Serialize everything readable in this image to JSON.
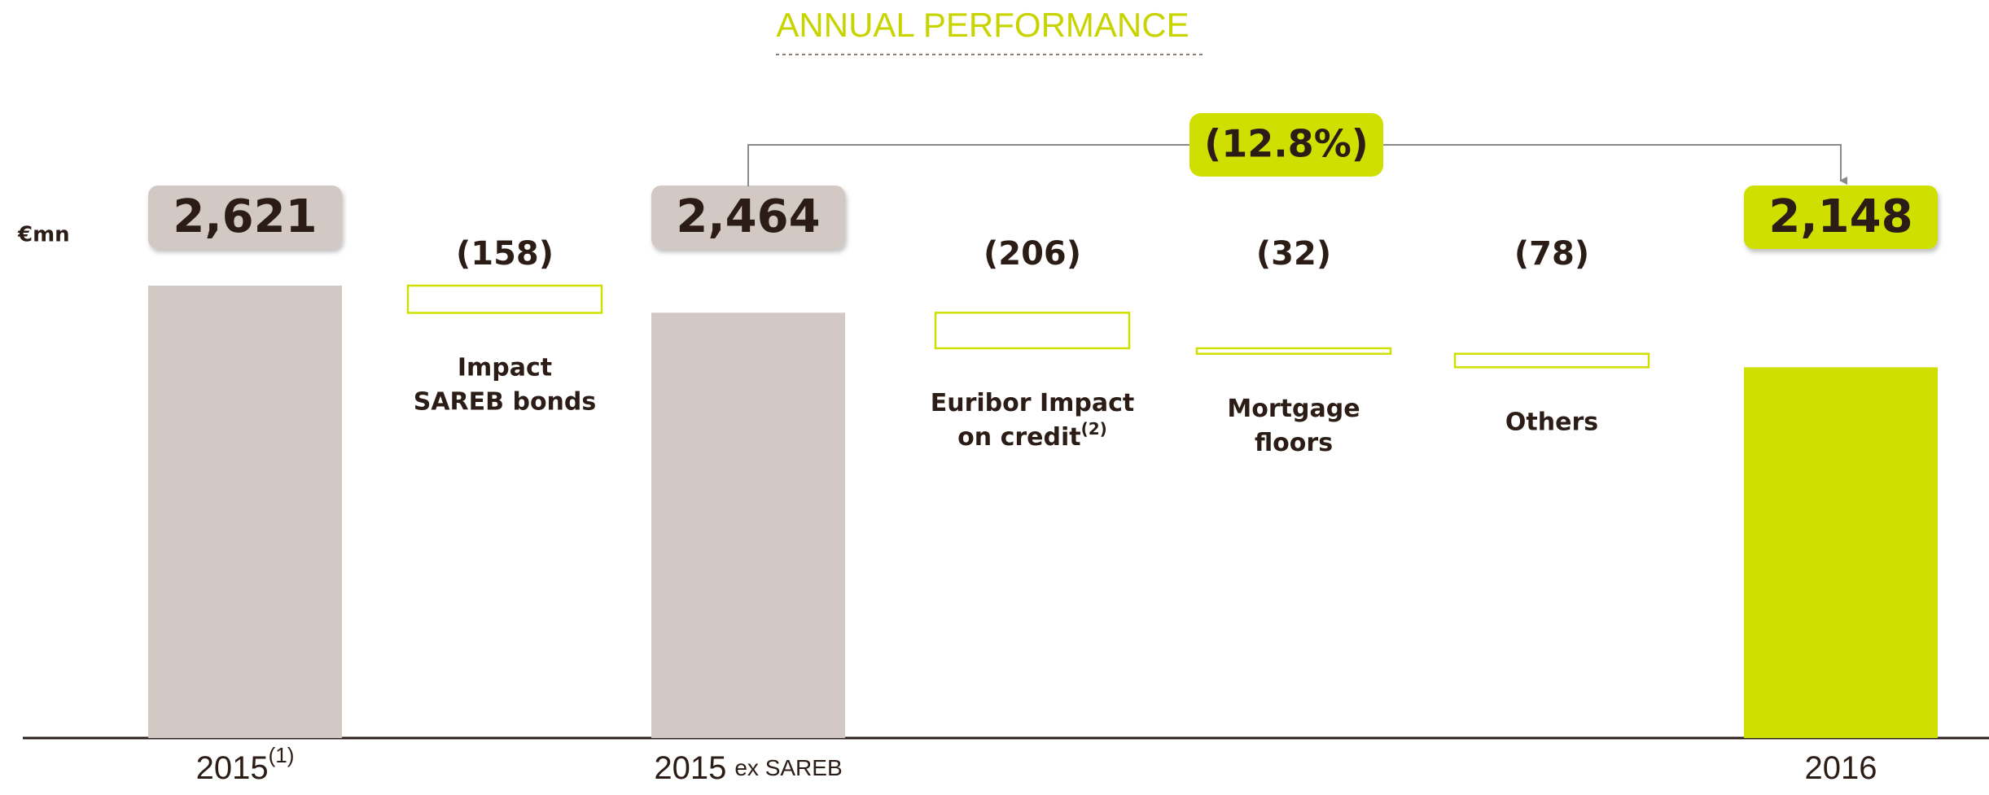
{
  "chart_data": {
    "type": "waterfall",
    "title": "ANNUAL PERFORMANCE",
    "unit": "€mn",
    "categories": [
      {
        "lines": [
          "2015"
        ],
        "sup": "(1)"
      },
      {
        "lines": [
          "Impact",
          "SAREB bonds"
        ]
      },
      {
        "lines": [
          "2015"
        ],
        "suffix": "ex SAREB"
      },
      {
        "lines": [
          "Euribor Impact",
          "on credit"
        ],
        "sup": "(2)"
      },
      {
        "lines": [
          "Mortgage",
          "floors"
        ]
      },
      {
        "lines": [
          "Others"
        ]
      },
      {
        "lines": [
          "2016"
        ]
      }
    ],
    "values": [
      2621,
      -158,
      2464,
      -206,
      -32,
      -78,
      2148
    ],
    "value_labels": [
      "2,621",
      "(158)",
      "2,464",
      "(206)",
      "(32)",
      "(78)",
      "2,148"
    ],
    "colors": [
      "#d3c9c4",
      "#cfe000",
      "#d3c9c4",
      "#cfe000",
      "#cfe000",
      "#cfe000",
      "#cfe000"
    ],
    "annotations": [
      "(12.8%)"
    ]
  }
}
